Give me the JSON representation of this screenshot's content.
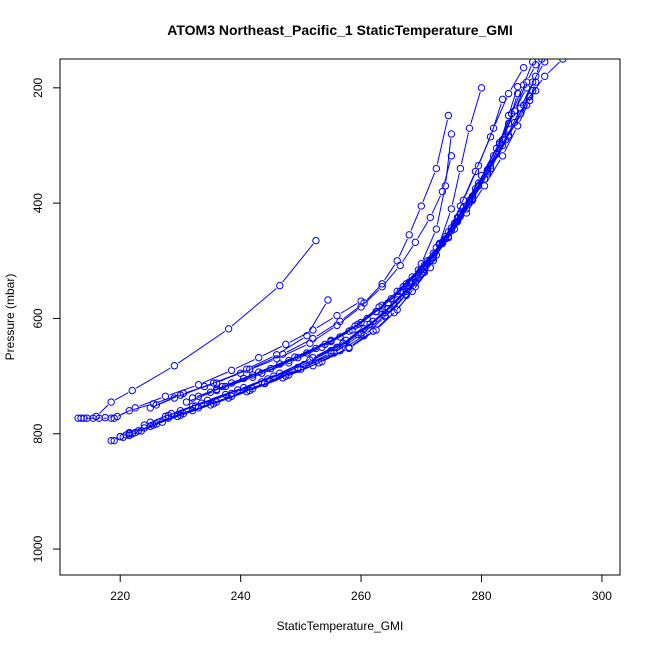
{
  "chart_data": {
    "type": "line",
    "title": "ATOM3 Northeast_Pacific_1 StaticTemperature_GMI",
    "xlabel": "StaticTemperature_GMI",
    "ylabel": "Pressure (mbar)",
    "xlim": [
      210,
      303
    ],
    "ylim": [
      1045,
      150
    ],
    "y_reversed": true,
    "x_ticks": [
      220,
      240,
      260,
      280,
      300
    ],
    "y_ticks": [
      200,
      400,
      600,
      800,
      1000
    ],
    "grid": false,
    "markers": "open-circle",
    "series_color": "#0000ff",
    "series": [
      {
        "x": [
          213.0,
          214.5,
          216.0,
          218.5,
          222.0,
          229.0,
          238.0,
          246.5,
          252.5
        ],
        "y": [
          773,
          773,
          770,
          745,
          725,
          682,
          618,
          543,
          465
        ]
      },
      {
        "x": [
          213.5,
          215.5,
          217.5,
          219.5,
          221.5,
          225.5,
          230.5,
          236.0,
          241.0,
          246.0,
          251.0,
          254.5
        ],
        "y": [
          773,
          773,
          772,
          770,
          760,
          748,
          730,
          712,
          688,
          663,
          630,
          568
        ]
      },
      {
        "x": [
          214.0,
          216.5,
          218.5,
          219.0,
          222.5,
          227.5,
          233.0,
          238.5,
          243.0,
          247.5,
          252.0,
          256.0,
          260.0
        ],
        "y": [
          773,
          773,
          773,
          773,
          755,
          735,
          715,
          690,
          668,
          645,
          620,
          595,
          570
        ]
      },
      {
        "x": [
          218.5,
          220.0,
          221.5,
          224.0,
          228.0,
          233.0,
          238.5,
          244.0,
          249.5,
          255.0,
          259.5,
          263.5,
          267.0,
          270.0,
          272.5,
          274.0,
          275.0
        ],
        "y": [
          812,
          805,
          798,
          790,
          773,
          755,
          735,
          712,
          688,
          660,
          628,
          593,
          555,
          505,
          445,
          370,
          280
        ]
      },
      {
        "x": [
          219.0,
          220.5,
          222.0,
          225.0,
          229.5,
          235.0,
          241.0,
          247.0,
          252.0,
          256.5,
          260.5,
          264.0,
          267.5,
          270.5,
          273.0,
          275.0,
          276.5,
          278.0,
          280.0
        ],
        "y": [
          812,
          806,
          800,
          787,
          770,
          750,
          727,
          703,
          682,
          656,
          630,
          597,
          560,
          520,
          470,
          410,
          340,
          270,
          200
        ]
      },
      {
        "x": [
          220.0,
          221.5,
          223.0,
          226.0,
          230.5,
          236.0,
          242.0,
          248.0,
          253.5,
          258.0,
          262.0,
          265.5,
          268.5,
          271.5,
          274.0,
          276.5,
          279.0,
          281.5,
          283.5
        ],
        "y": [
          805,
          800,
          795,
          783,
          765,
          745,
          722,
          698,
          675,
          650,
          622,
          590,
          553,
          512,
          462,
          405,
          345,
          285,
          220
        ]
      },
      {
        "x": [
          221.0,
          222.5,
          225.5,
          230.0,
          235.5,
          241.5,
          247.5,
          253.0,
          258.0,
          262.5,
          266.0,
          269.0,
          272.0,
          274.5,
          277.0,
          279.5,
          282.0,
          284.5,
          287.0
        ],
        "y": [
          802,
          798,
          785,
          768,
          748,
          725,
          700,
          677,
          652,
          620,
          585,
          545,
          500,
          450,
          395,
          335,
          270,
          210,
          165
        ]
      },
      {
        "x": [
          221.5,
          223.5,
          227.0,
          232.0,
          238.0,
          244.0,
          250.0,
          255.5,
          260.0,
          264.0,
          267.5,
          270.5,
          273.5,
          276.5,
          279.5,
          282.5,
          285.0,
          287.0,
          288.5
        ],
        "y": [
          803,
          795,
          780,
          760,
          738,
          713,
          688,
          660,
          628,
          595,
          558,
          515,
          468,
          418,
          365,
          305,
          245,
          195,
          155
        ]
      },
      {
        "x": [
          224.0,
          227.5,
          232.5,
          238.5,
          244.5,
          250.5,
          256.0,
          260.5,
          264.5,
          268.0,
          271.0,
          274.0,
          277.0,
          280.0,
          283.0,
          285.5,
          287.5,
          289.0
        ],
        "y": [
          785,
          770,
          752,
          730,
          705,
          680,
          650,
          618,
          583,
          545,
          505,
          458,
          408,
          352,
          295,
          240,
          190,
          160
        ]
      },
      {
        "x": [
          225.0,
          228.5,
          233.5,
          239.5,
          245.5,
          251.5,
          257.0,
          261.5,
          265.5,
          269.0,
          272.0,
          275.0,
          278.0,
          281.0,
          284.0,
          286.5,
          288.5,
          290.5
        ],
        "y": [
          780,
          765,
          747,
          724,
          700,
          672,
          643,
          610,
          575,
          537,
          495,
          448,
          398,
          345,
          290,
          235,
          190,
          155
        ]
      },
      {
        "x": [
          228.0,
          232.0,
          237.5,
          243.5,
          249.5,
          255.0,
          260.0,
          264.0,
          267.5,
          270.5,
          273.5,
          276.5,
          279.5,
          282.5,
          285.5,
          288.0,
          290.5,
          293.5
        ],
        "y": [
          768,
          752,
          732,
          710,
          685,
          656,
          625,
          590,
          553,
          512,
          468,
          420,
          370,
          315,
          260,
          215,
          180,
          150
        ]
      },
      {
        "x": [
          230.0,
          234.5,
          240.5,
          246.5,
          252.0,
          257.5,
          262.0,
          266.0,
          269.5,
          272.5,
          275.5,
          278.5,
          281.5,
          284.5,
          287.0,
          289.0,
          290.0
        ],
        "y": [
          760,
          742,
          720,
          695,
          668,
          638,
          605,
          568,
          530,
          490,
          445,
          395,
          340,
          285,
          230,
          180,
          150
        ]
      },
      {
        "x": [
          225.0,
          229.0,
          234.0,
          240.0,
          246.0,
          251.5,
          256.0,
          260.0,
          263.5,
          266.5,
          269.0,
          271.5,
          273.5,
          275.0
        ],
        "y": [
          755,
          738,
          718,
          695,
          670,
          643,
          612,
          580,
          545,
          508,
          468,
          425,
          380,
          318
        ]
      },
      {
        "x": [
          226.0,
          230.0,
          235.5,
          241.5,
          247.0,
          252.0,
          256.5,
          260.5,
          263.5,
          266.0,
          268.0,
          270.0,
          272.5,
          274.5
        ],
        "y": [
          750,
          733,
          712,
          688,
          662,
          635,
          605,
          573,
          540,
          500,
          455,
          405,
          340,
          248
        ]
      },
      {
        "x": [
          231.0,
          236.0,
          242.0,
          248.0,
          253.5,
          258.5,
          262.5,
          266.5,
          270.0,
          273.0,
          276.0,
          279.0,
          282.0,
          284.5,
          286.0
        ],
        "y": [
          745,
          725,
          702,
          677,
          650,
          620,
          588,
          553,
          515,
          472,
          425,
          375,
          318,
          262,
          210
        ]
      },
      {
        "x": [
          232.0,
          237.5,
          243.5,
          249.5,
          255.0,
          259.5,
          263.5,
          267.5,
          271.0,
          274.5,
          277.5,
          280.5,
          283.5,
          286.5,
          288.5
        ],
        "y": [
          738,
          718,
          695,
          668,
          640,
          610,
          577,
          540,
          500,
          458,
          410,
          358,
          300,
          245,
          205
        ]
      },
      {
        "x": [
          233.0,
          238.5,
          245.0,
          251.0,
          256.5,
          261.0,
          265.0,
          268.5,
          272.0,
          275.0,
          278.0,
          281.0,
          283.5,
          285.5,
          287.5
        ],
        "y": [
          735,
          712,
          687,
          660,
          632,
          600,
          566,
          528,
          487,
          443,
          395,
          342,
          290,
          240,
          200
        ]
      },
      {
        "x": [
          235.0,
          240.5,
          246.5,
          252.5,
          258.0,
          262.5,
          266.0,
          269.5,
          272.5,
          275.5,
          278.5,
          281.5,
          284.5,
          287.5,
          289.0
        ],
        "y": [
          728,
          704,
          679,
          652,
          622,
          588,
          553,
          516,
          477,
          435,
          388,
          335,
          282,
          230,
          205
        ]
      },
      {
        "x": [
          236.0,
          242.0,
          248.0,
          254.0,
          259.0,
          263.0,
          267.0,
          270.5,
          273.5,
          276.0,
          278.5,
          281.0,
          283.0,
          284.5,
          286.0
        ],
        "y": [
          723,
          698,
          673,
          645,
          613,
          580,
          545,
          508,
          470,
          432,
          392,
          348,
          298,
          248,
          198
        ]
      },
      {
        "x": [
          237.0,
          243.0,
          249.0,
          255.0,
          260.0,
          264.5,
          268.0,
          271.5,
          274.5,
          277.5,
          280.5,
          283.5,
          286.0,
          288.0,
          289.0
        ],
        "y": [
          718,
          693,
          667,
          638,
          607,
          573,
          537,
          499,
          460,
          417,
          370,
          318,
          266,
          222,
          190
        ]
      }
    ]
  }
}
